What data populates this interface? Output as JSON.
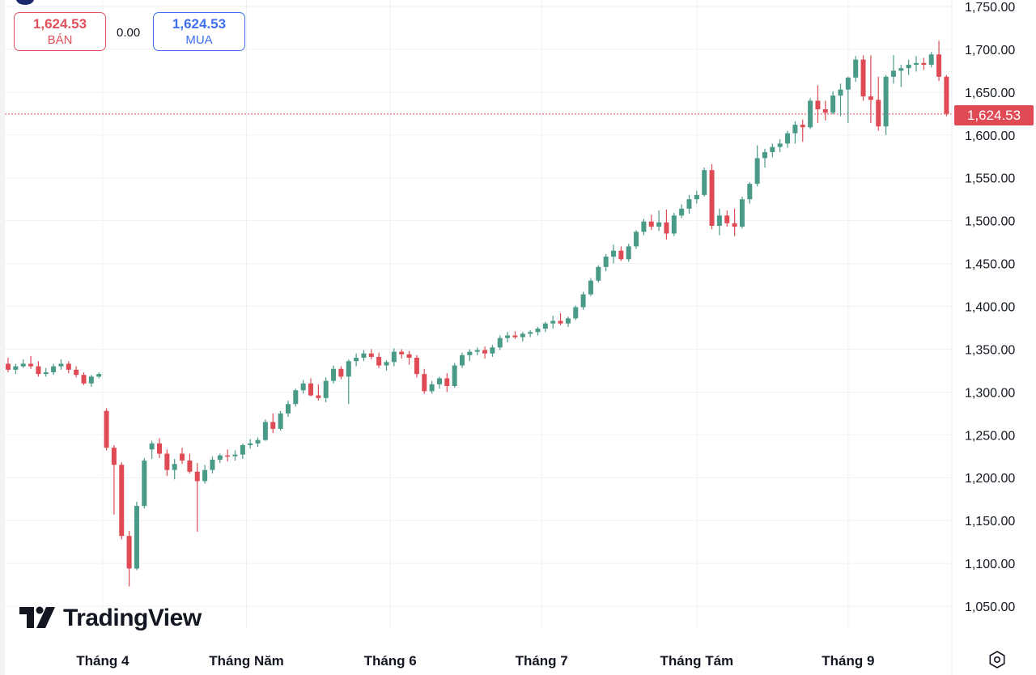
{
  "order_panel": {
    "sell_price": "1,624.53",
    "sell_label": "BÁN",
    "spread": "0.00",
    "buy_price": "1,624.53",
    "buy_label": "MUA"
  },
  "last_price_label": "1,624.53",
  "brand": "TradingView",
  "colors": {
    "up": "#4a9a88",
    "down": "#e04a55",
    "sell": "#e0505a",
    "buy": "#3d6ff0"
  },
  "icons": {
    "settings": "settings-icon",
    "logo": "tradingview-logo-icon"
  },
  "chart_data": {
    "type": "candlestick",
    "y_ticks": [
      "1,750.00",
      "1,700.00",
      "1,650.00",
      "1,600.00",
      "1,550.00",
      "1,500.00",
      "1,450.00",
      "1,400.00",
      "1,350.00",
      "1,300.00",
      "1,250.00",
      "1,200.00",
      "1,150.00",
      "1,100.00",
      "1,050.00"
    ],
    "y_tick_values": [
      1750,
      1700,
      1650,
      1600,
      1550,
      1500,
      1450,
      1400,
      1350,
      1300,
      1250,
      1200,
      1150,
      1100,
      1050
    ],
    "x_ticks": [
      "Tháng 4",
      "Tháng Năm",
      "Tháng 6",
      "Tháng 7",
      "Tháng Tám",
      "Tháng 9"
    ],
    "x_tick_index": [
      12.5,
      31.5,
      50.5,
      70.5,
      91,
      111
    ],
    "ylim": [
      1020,
      1760
    ],
    "last_price": 1624.53,
    "grid": true,
    "ohlc": [
      [
        1333,
        1340,
        1323,
        1326
      ],
      [
        1326,
        1333,
        1321,
        1330
      ],
      [
        1330,
        1338,
        1328,
        1333
      ],
      [
        1333,
        1342,
        1327,
        1330
      ],
      [
        1330,
        1336,
        1318,
        1321
      ],
      [
        1321,
        1328,
        1318,
        1323
      ],
      [
        1323,
        1333,
        1320,
        1330
      ],
      [
        1330,
        1338,
        1326,
        1333
      ],
      [
        1333,
        1336,
        1322,
        1326
      ],
      [
        1326,
        1330,
        1317,
        1320
      ],
      [
        1320,
        1323,
        1308,
        1310
      ],
      [
        1310,
        1320,
        1306,
        1318
      ],
      [
        1318,
        1323,
        1316,
        1321
      ],
      [
        1278,
        1281,
        1232,
        1235
      ],
      [
        1235,
        1238,
        1157,
        1215
      ],
      [
        1215,
        1218,
        1128,
        1132
      ],
      [
        1132,
        1138,
        1073,
        1094
      ],
      [
        1094,
        1172,
        1092,
        1167
      ],
      [
        1167,
        1223,
        1164,
        1220
      ],
      [
        1233,
        1243,
        1222,
        1240
      ],
      [
        1240,
        1246,
        1223,
        1228
      ],
      [
        1228,
        1233,
        1202,
        1209
      ],
      [
        1209,
        1222,
        1198,
        1216
      ],
      [
        1228,
        1235,
        1216,
        1220
      ],
      [
        1220,
        1228,
        1205,
        1207
      ],
      [
        1207,
        1217,
        1137,
        1196
      ],
      [
        1196,
        1215,
        1193,
        1209
      ],
      [
        1209,
        1225,
        1205,
        1221
      ],
      [
        1221,
        1228,
        1217,
        1226
      ],
      [
        1226,
        1233,
        1219,
        1225
      ],
      [
        1225,
        1232,
        1220,
        1227
      ],
      [
        1227,
        1240,
        1222,
        1238
      ],
      [
        1238,
        1245,
        1234,
        1240
      ],
      [
        1240,
        1247,
        1236,
        1244
      ],
      [
        1244,
        1268,
        1243,
        1265
      ],
      [
        1265,
        1275,
        1252,
        1257
      ],
      [
        1257,
        1278,
        1255,
        1275
      ],
      [
        1275,
        1290,
        1271,
        1286
      ],
      [
        1286,
        1304,
        1283,
        1302
      ],
      [
        1302,
        1314,
        1298,
        1310
      ],
      [
        1310,
        1316,
        1295,
        1296
      ],
      [
        1296,
        1309,
        1290,
        1293
      ],
      [
        1293,
        1317,
        1288,
        1313
      ],
      [
        1313,
        1331,
        1310,
        1327
      ],
      [
        1327,
        1330,
        1315,
        1318
      ],
      [
        1318,
        1338,
        1286,
        1336
      ],
      [
        1336,
        1345,
        1330,
        1340
      ],
      [
        1340,
        1349,
        1336,
        1345
      ],
      [
        1345,
        1350,
        1338,
        1341
      ],
      [
        1341,
        1346,
        1328,
        1331
      ],
      [
        1331,
        1337,
        1325,
        1335
      ],
      [
        1335,
        1351,
        1330,
        1347
      ],
      [
        1347,
        1350,
        1339,
        1344
      ],
      [
        1344,
        1348,
        1332,
        1340
      ],
      [
        1340,
        1343,
        1317,
        1321
      ],
      [
        1321,
        1327,
        1298,
        1301
      ],
      [
        1301,
        1313,
        1298,
        1309
      ],
      [
        1309,
        1318,
        1304,
        1316
      ],
      [
        1316,
        1322,
        1300,
        1307
      ],
      [
        1307,
        1334,
        1305,
        1331
      ],
      [
        1331,
        1346,
        1328,
        1343
      ],
      [
        1343,
        1350,
        1336,
        1347
      ],
      [
        1347,
        1352,
        1343,
        1349
      ],
      [
        1349,
        1353,
        1339,
        1345
      ],
      [
        1345,
        1355,
        1341,
        1352
      ],
      [
        1352,
        1366,
        1349,
        1363
      ],
      [
        1363,
        1370,
        1358,
        1366
      ],
      [
        1366,
        1371,
        1362,
        1364
      ],
      [
        1364,
        1370,
        1359,
        1368
      ],
      [
        1368,
        1372,
        1364,
        1370
      ],
      [
        1370,
        1376,
        1366,
        1374
      ],
      [
        1374,
        1382,
        1370,
        1380
      ],
      [
        1380,
        1389,
        1374,
        1383
      ],
      [
        1383,
        1392,
        1378,
        1380
      ],
      [
        1380,
        1388,
        1376,
        1386
      ],
      [
        1386,
        1401,
        1384,
        1399
      ],
      [
        1399,
        1417,
        1396,
        1414
      ],
      [
        1414,
        1433,
        1412,
        1430
      ],
      [
        1430,
        1448,
        1428,
        1446
      ],
      [
        1446,
        1461,
        1441,
        1458
      ],
      [
        1458,
        1472,
        1450,
        1465
      ],
      [
        1465,
        1470,
        1453,
        1455
      ],
      [
        1455,
        1473,
        1452,
        1470
      ],
      [
        1470,
        1489,
        1467,
        1487
      ],
      [
        1487,
        1502,
        1483,
        1499
      ],
      [
        1499,
        1507,
        1489,
        1493
      ],
      [
        1493,
        1512,
        1488,
        1498
      ],
      [
        1498,
        1513,
        1478,
        1485
      ],
      [
        1485,
        1509,
        1482,
        1506
      ],
      [
        1506,
        1519,
        1503,
        1514
      ],
      [
        1514,
        1530,
        1508,
        1525
      ],
      [
        1525,
        1535,
        1520,
        1530
      ],
      [
        1530,
        1562,
        1528,
        1559
      ],
      [
        1559,
        1566,
        1490,
        1494
      ],
      [
        1494,
        1514,
        1483,
        1506
      ],
      [
        1506,
        1512,
        1493,
        1497
      ],
      [
        1497,
        1514,
        1482,
        1493
      ],
      [
        1493,
        1528,
        1491,
        1525
      ],
      [
        1525,
        1545,
        1520,
        1543
      ],
      [
        1543,
        1588,
        1540,
        1573
      ],
      [
        1573,
        1584,
        1562,
        1580
      ],
      [
        1580,
        1590,
        1574,
        1586
      ],
      [
        1586,
        1595,
        1580,
        1590
      ],
      [
        1590,
        1605,
        1585,
        1602
      ],
      [
        1602,
        1616,
        1590,
        1612
      ],
      [
        1612,
        1618,
        1592,
        1609
      ],
      [
        1609,
        1643,
        1607,
        1640
      ],
      [
        1640,
        1658,
        1614,
        1630
      ],
      [
        1630,
        1640,
        1617,
        1626
      ],
      [
        1626,
        1651,
        1624,
        1646
      ],
      [
        1646,
        1660,
        1622,
        1653
      ],
      [
        1653,
        1668,
        1614,
        1667
      ],
      [
        1667,
        1692,
        1662,
        1688
      ],
      [
        1688,
        1693,
        1640,
        1645
      ],
      [
        1645,
        1693,
        1614,
        1641
      ],
      [
        1641,
        1668,
        1605,
        1610
      ],
      [
        1610,
        1670,
        1600,
        1668
      ],
      [
        1668,
        1693,
        1660,
        1675
      ],
      [
        1675,
        1682,
        1656,
        1678
      ],
      [
        1678,
        1688,
        1670,
        1682
      ],
      [
        1682,
        1692,
        1674,
        1684
      ],
      [
        1684,
        1690,
        1676,
        1682
      ],
      [
        1682,
        1697,
        1679,
        1694
      ],
      [
        1694,
        1710,
        1663,
        1668
      ],
      [
        1668,
        1670,
        1622,
        1625
      ]
    ]
  }
}
